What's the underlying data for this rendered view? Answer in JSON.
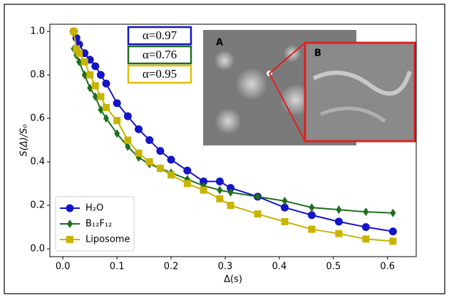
{
  "chart_data": {
    "type": "line",
    "x_label": "Δ(s)",
    "y_label": "S(Δ)/S₀",
    "x": [
      0.02,
      0.025,
      0.03,
      0.04,
      0.05,
      0.06,
      0.07,
      0.08,
      0.1,
      0.12,
      0.14,
      0.16,
      0.18,
      0.2,
      0.23,
      0.26,
      0.29,
      0.31,
      0.36,
      0.41,
      0.46,
      0.51,
      0.56,
      0.61
    ],
    "series": [
      {
        "name": "H₂O",
        "color": "#1414c8",
        "marker": "circle",
        "values": [
          1.0,
          0.97,
          0.94,
          0.9,
          0.87,
          0.84,
          0.8,
          0.76,
          0.67,
          0.61,
          0.55,
          0.5,
          0.45,
          0.41,
          0.36,
          0.31,
          0.31,
          0.28,
          0.24,
          0.19,
          0.155,
          0.125,
          0.1,
          0.08
        ]
      },
      {
        "name": "B₁₂F₁₂",
        "color": "#1e6e1e",
        "marker": "diamond",
        "values": [
          0.92,
          0.89,
          0.86,
          0.8,
          0.74,
          0.7,
          0.64,
          0.6,
          0.53,
          0.47,
          0.42,
          0.39,
          0.37,
          0.35,
          0.32,
          0.29,
          0.27,
          0.26,
          0.24,
          0.22,
          0.19,
          0.18,
          0.17,
          0.165
        ]
      },
      {
        "name": "Liposome",
        "color": "#c8b400",
        "marker": "square",
        "values": [
          1.0,
          0.92,
          0.9,
          0.86,
          0.8,
          0.75,
          0.7,
          0.65,
          0.59,
          0.5,
          0.44,
          0.4,
          0.37,
          0.34,
          0.3,
          0.27,
          0.23,
          0.2,
          0.16,
          0.125,
          0.09,
          0.07,
          0.045,
          0.035
        ]
      }
    ],
    "xlim": [
      -0.024,
      0.653
    ],
    "ylim": [
      -0.036,
      1.033
    ],
    "xticks": [
      {
        "value": 0,
        "label": "0.0"
      },
      0.1,
      0.2,
      0.3,
      0.4,
      0.5,
      0.6
    ],
    "yticks": [
      {
        "value": 0,
        "label": "0.0"
      },
      0.2,
      0.4,
      0.6,
      0.8,
      {
        "value": 1,
        "label": "1.0"
      }
    ],
    "legend": "lower left",
    "annotations": [
      {
        "text": "α=0.97",
        "color": "#1414c8"
      },
      {
        "text": "α=0.76",
        "color": "#1e6e1e"
      },
      {
        "text": "α=0.95",
        "color": "#e0c000"
      }
    ],
    "inset_labels": [
      "A",
      "B"
    ]
  }
}
